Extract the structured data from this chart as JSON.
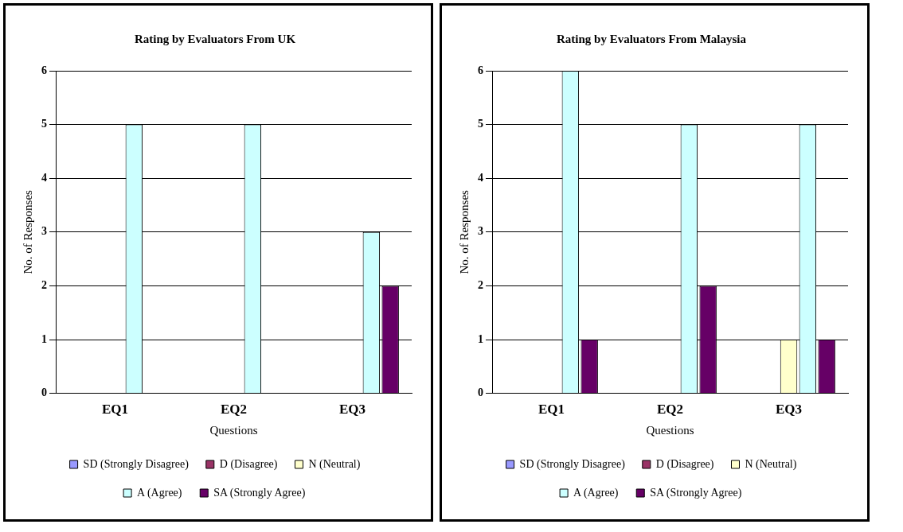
{
  "chart_data": [
    {
      "type": "bar",
      "title": "Rating by Evaluators From UK",
      "xlabel": "Questions",
      "ylabel": "No. of Responses",
      "categories": [
        "EQ1",
        "EQ2",
        "EQ3"
      ],
      "ylim": [
        0,
        6
      ],
      "yticks": [
        0,
        1,
        2,
        3,
        4,
        5,
        6
      ],
      "grid": "y",
      "legend": "bottom",
      "series": [
        {
          "name": "SD (Strongly Disagree)",
          "color": "#9999ff",
          "values": [
            0,
            0,
            0
          ]
        },
        {
          "name": "D (Disagree)",
          "color": "#993366",
          "values": [
            0,
            0,
            0
          ]
        },
        {
          "name": "N (Neutral)",
          "color": "#ffffcc",
          "values": [
            0,
            0,
            0
          ]
        },
        {
          "name": "A (Agree)",
          "color": "#ccffff",
          "values": [
            5,
            5,
            3
          ]
        },
        {
          "name": "SA (Strongly Agree)",
          "color": "#660066",
          "values": [
            0,
            0,
            2
          ]
        }
      ]
    },
    {
      "type": "bar",
      "title": "Rating by Evaluators From Malaysia",
      "xlabel": "Questions",
      "ylabel": "No. of Responses",
      "categories": [
        "EQ1",
        "EQ2",
        "EQ3"
      ],
      "ylim": [
        0,
        6
      ],
      "yticks": [
        0,
        1,
        2,
        3,
        4,
        5,
        6
      ],
      "grid": "y",
      "legend": "bottom",
      "series": [
        {
          "name": "SD (Strongly Disagree)",
          "color": "#9999ff",
          "values": [
            0,
            0,
            0
          ]
        },
        {
          "name": "D (Disagree)",
          "color": "#993366",
          "values": [
            0,
            0,
            0
          ]
        },
        {
          "name": "N (Neutral)",
          "color": "#ffffcc",
          "values": [
            0,
            0,
            1
          ]
        },
        {
          "name": "A (Agree)",
          "color": "#ccffff",
          "values": [
            6,
            5,
            5
          ]
        },
        {
          "name": "SA (Strongly Agree)",
          "color": "#660066",
          "values": [
            1,
            2,
            1
          ]
        }
      ]
    }
  ]
}
